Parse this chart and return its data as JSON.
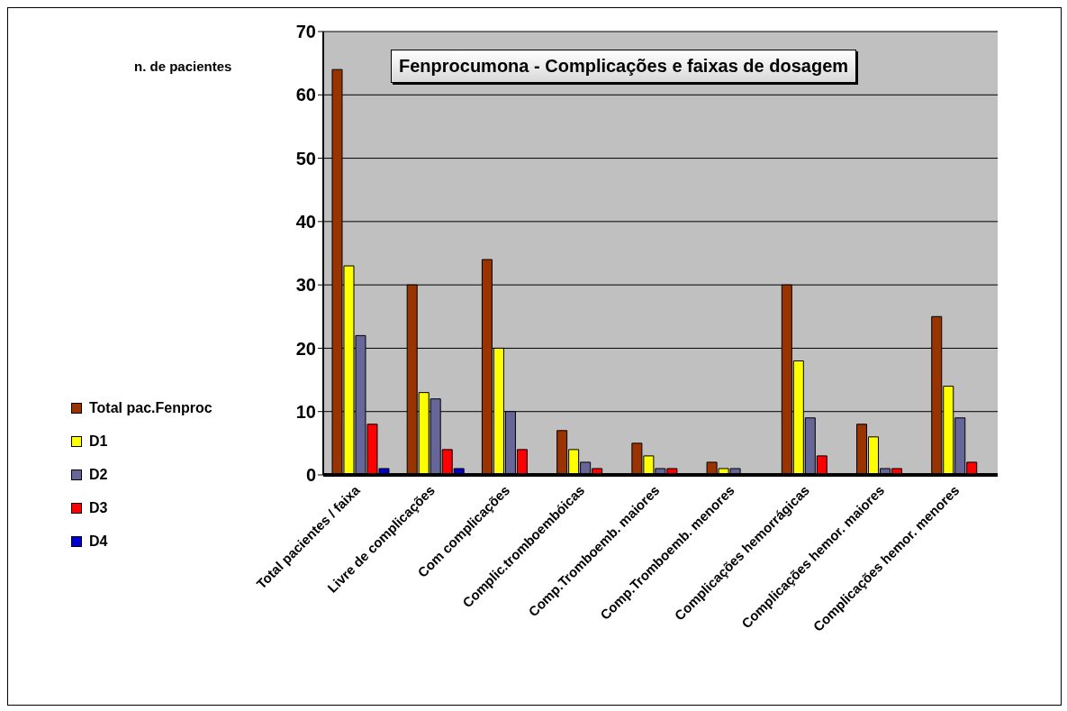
{
  "chart_data": {
    "type": "bar",
    "title": "Fenprocumona - Complicações e faixas de dosagem",
    "ylabel": "n. de pacientes",
    "categories": [
      "Total pacientes / faixa",
      "Livre de complicações",
      "Com complicações",
      "Complic.tromboembóicas",
      "Comp.Tromboemb. maiores",
      "Comp.Tromboemb. menores",
      "Complicações hemorrágicas",
      "Complicações hemor. maiores",
      "Complicações hemor. menores"
    ],
    "series": [
      {
        "name": "Total pac.Fenproc",
        "color": "#993300",
        "values": [
          64,
          30,
          34,
          7,
          5,
          2,
          30,
          8,
          25
        ]
      },
      {
        "name": "D1",
        "color": "#ffff00",
        "values": [
          33,
          13,
          20,
          4,
          3,
          1,
          18,
          6,
          14
        ]
      },
      {
        "name": "D2",
        "color": "#666699",
        "values": [
          22,
          12,
          10,
          2,
          1,
          1,
          9,
          1,
          9
        ]
      },
      {
        "name": "D3",
        "color": "#ff0000",
        "values": [
          8,
          4,
          4,
          1,
          1,
          0,
          3,
          1,
          2
        ]
      },
      {
        "name": "D4",
        "color": "#0000cc",
        "values": [
          1,
          1,
          0,
          0,
          0,
          0,
          0,
          0,
          0
        ]
      }
    ],
    "ylim": [
      0,
      70
    ],
    "yticks": [
      0,
      10,
      20,
      30,
      40,
      50,
      60,
      70
    ],
    "grid": "y",
    "legend": "left"
  }
}
